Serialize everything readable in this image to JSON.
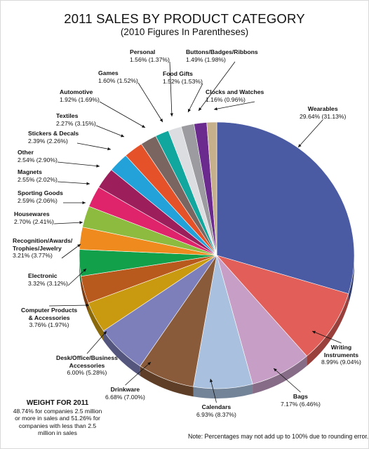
{
  "chart_data": {
    "type": "pie",
    "title": "2011 SALES BY PRODUCT CATEGORY",
    "subtitle": "(2010 Figures In Parentheses)",
    "slices": [
      {
        "name": "Wearables",
        "value_2011": "29.64%",
        "value_2010": "(31.13%)",
        "pct": 29.64,
        "color": "#4a5aa3"
      },
      {
        "name": "Writing Instruments",
        "value_2011": "8.99%",
        "value_2010": "(9.04%)",
        "pct": 8.99,
        "color": "#e25e58"
      },
      {
        "name": "Bags",
        "value_2011": "7.17%",
        "value_2010": "(6.46%)",
        "pct": 7.17,
        "color": "#c79fc6"
      },
      {
        "name": "Calendars",
        "value_2011": "6.93%",
        "value_2010": "(8.37%)",
        "pct": 6.93,
        "color": "#a9c1df"
      },
      {
        "name": "Drinkware",
        "value_2011": "6.68%",
        "value_2010": "(7.00%)",
        "pct": 6.68,
        "color": "#8a5b3a"
      },
      {
        "name": "Desk/Office/Business Accessories",
        "value_2011": "6.00%",
        "value_2010": "(5.28%)",
        "pct": 6.0,
        "color": "#7c7fb9"
      },
      {
        "name": "Computer Products & Accessories",
        "value_2011": "3.76%",
        "value_2010": "(1.97%)",
        "pct": 3.76,
        "color": "#c99a10"
      },
      {
        "name": "Electronic",
        "value_2011": "3.32%",
        "value_2010": "(3.12%)",
        "pct": 3.32,
        "color": "#b85a1d"
      },
      {
        "name": "Recognition/Awards/Trophies/Jewelry",
        "value_2011": "3.21%",
        "value_2010": "(3.77%)",
        "pct": 3.21,
        "color": "#12a14a"
      },
      {
        "name": "Housewares",
        "value_2011": "2.70%",
        "value_2010": "(2.41%)",
        "pct": 2.7,
        "color": "#ef8a1f"
      },
      {
        "name": "Sporting Goods",
        "value_2011": "2.59%",
        "value_2010": "(2.06%)",
        "pct": 2.59,
        "color": "#8cbb3f"
      },
      {
        "name": "Magnets",
        "value_2011": "2.55%",
        "value_2010": "(2.02%)",
        "pct": 2.55,
        "color": "#e0246b"
      },
      {
        "name": "Other",
        "value_2011": "2.54%",
        "value_2010": "(2.90%)",
        "pct": 2.54,
        "color": "#9c1f5c"
      },
      {
        "name": "Stickers & Decals",
        "value_2011": "2.39%",
        "value_2010": "(2.26%)",
        "pct": 2.39,
        "color": "#23a2d9"
      },
      {
        "name": "Textiles",
        "value_2011": "2.27%",
        "value_2010": "(3.15%)",
        "pct": 2.27,
        "color": "#e5522a"
      },
      {
        "name": "Automotive",
        "value_2011": "1.92%",
        "value_2010": "(1.69%)",
        "pct": 1.92,
        "color": "#7a6561"
      },
      {
        "name": "Games",
        "value_2011": "1.60%",
        "value_2010": "(1.52%)",
        "pct": 1.6,
        "color": "#12a79e"
      },
      {
        "name": "Personal",
        "value_2011": "1.56%",
        "value_2010": "(1.37%)",
        "pct": 1.56,
        "color": "#dcdde0"
      },
      {
        "name": "Food Gifts",
        "value_2011": "1.52%",
        "value_2010": "(1.53%)",
        "pct": 1.52,
        "color": "#9b9ba0"
      },
      {
        "name": "Buttons/Badges/Ribbons",
        "value_2011": "1.49%",
        "value_2010": "(1.98%)",
        "pct": 1.49,
        "color": "#6a2a8e"
      },
      {
        "name": "Clocks and Watches",
        "value_2011": "1.16%",
        "value_2010": "(0.96%)",
        "pct": 1.16,
        "color": "#c6b08c"
      }
    ]
  },
  "weight": {
    "title": "WEIGHT FOR 2011",
    "line1": "48.74% for companies 2.5 million",
    "line2": "or more in sales and 51.26% for",
    "line3": "companies with less than 2.5",
    "line4": "million in sales"
  },
  "note": "Note: Percentages may not add up to 100% due to rounding error."
}
